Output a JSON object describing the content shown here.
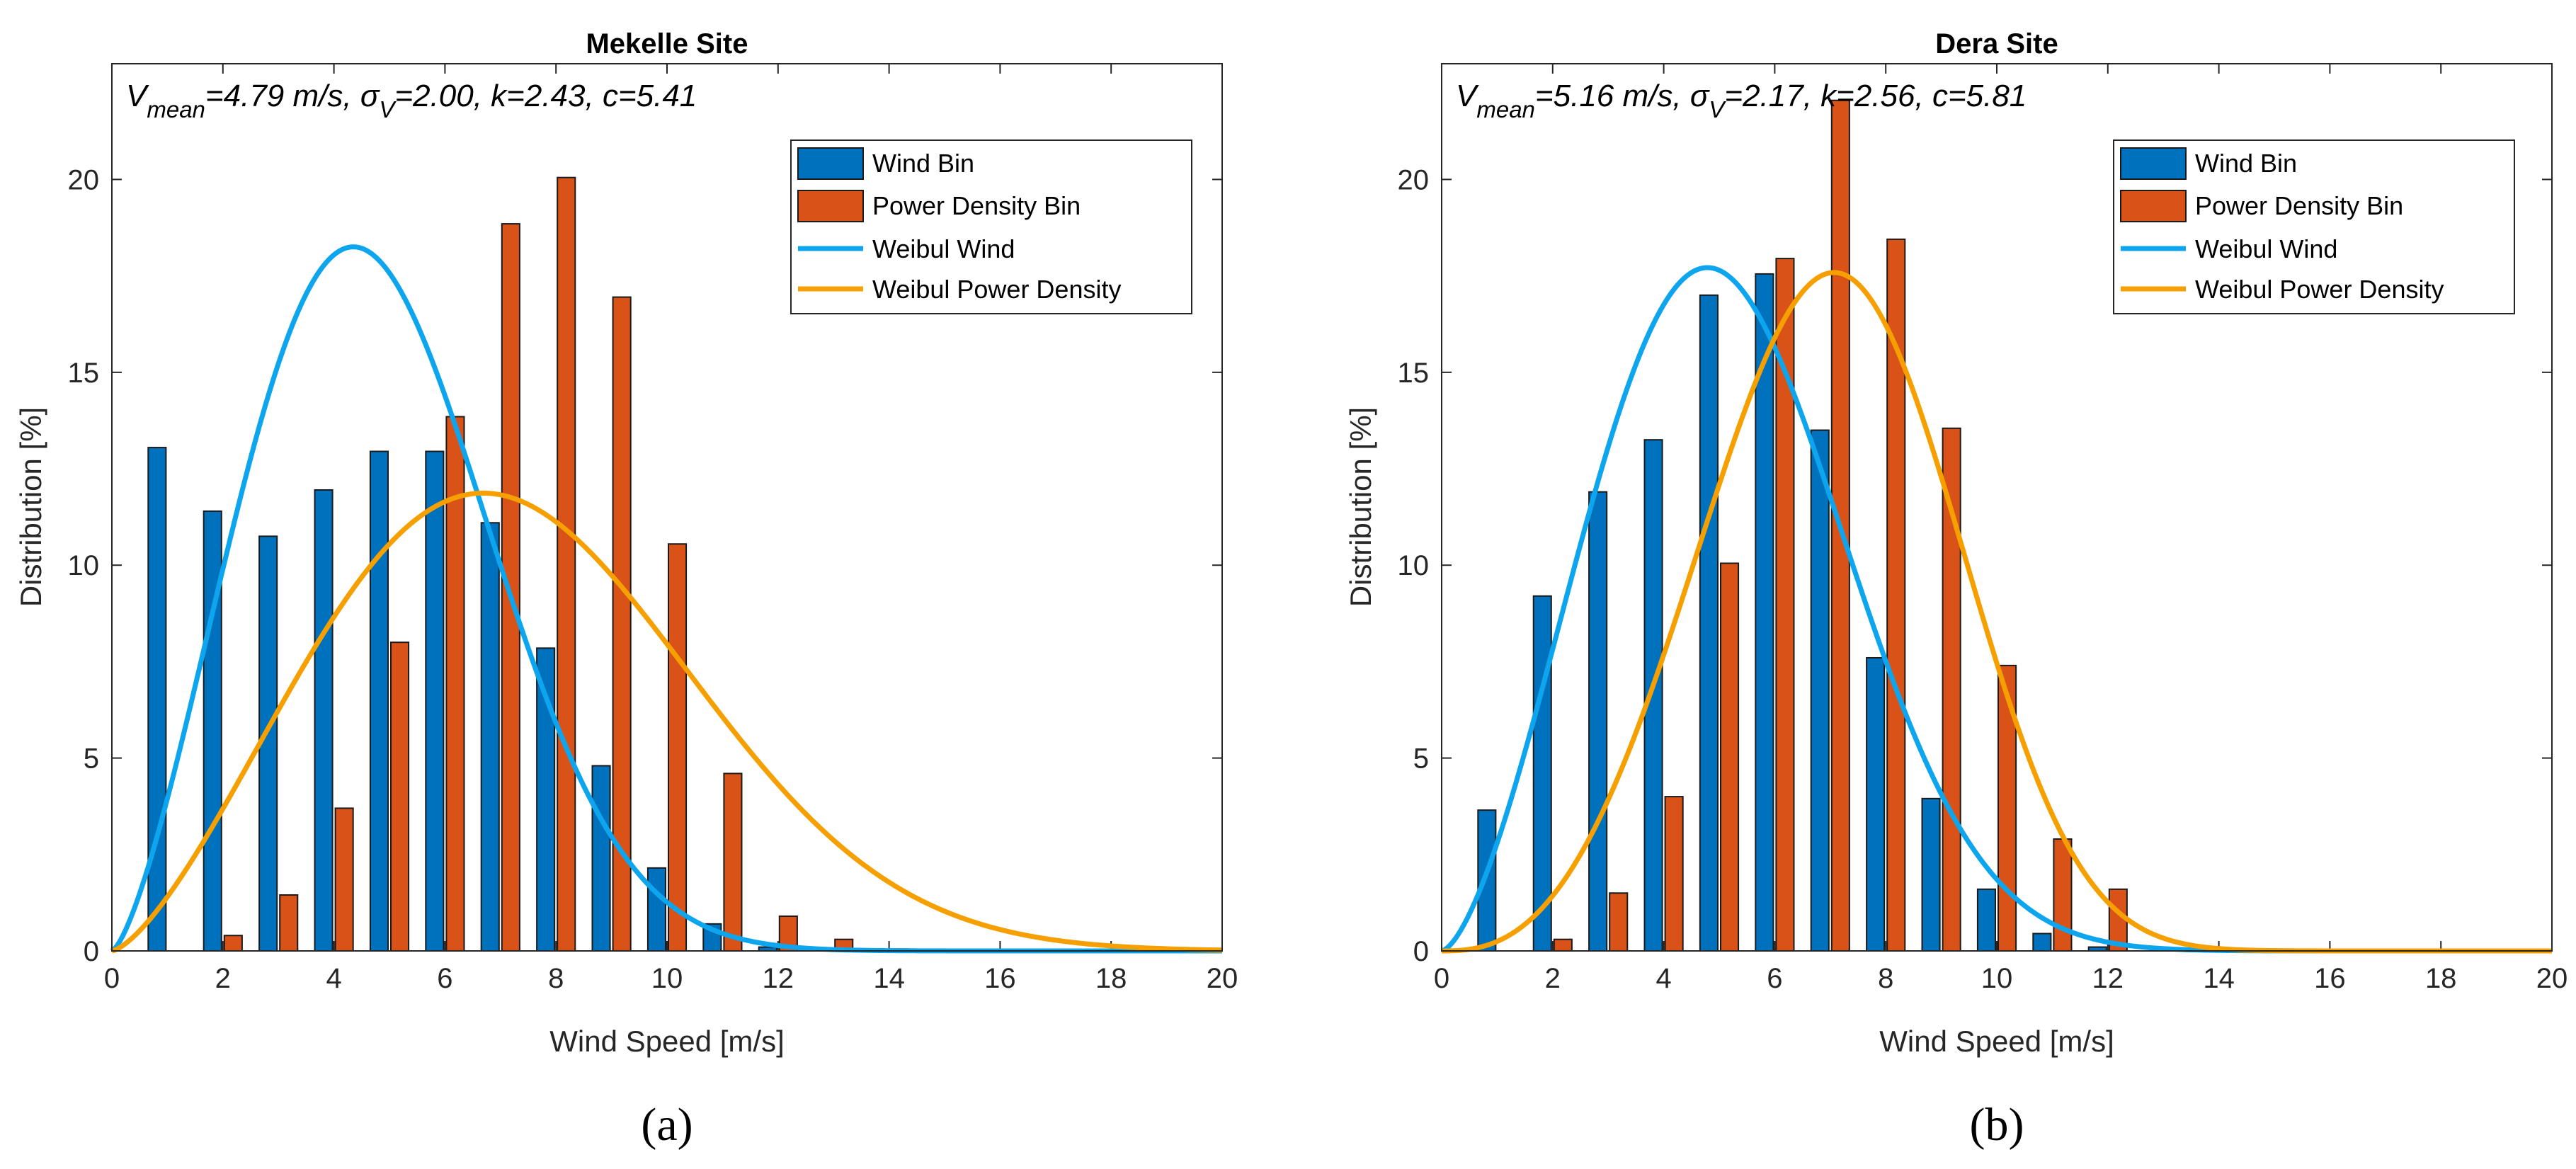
{
  "chart_data": [
    {
      "id": "a",
      "type": "bar",
      "title": "Mekelle Site",
      "subtitle_parts": {
        "v": "V",
        "v_sub": "mean",
        "v_val": "=4.79 m/s, ",
        "sigma": "σ",
        "sigma_sub": "V",
        "rest": "=2.00, k=2.43, c=5.41"
      },
      "xlabel": "Wind Speed [m/s]",
      "ylabel": "Distribution [%]",
      "xlim": [
        0,
        20
      ],
      "ylim": [
        0,
        23
      ],
      "xticks": [
        0,
        2,
        4,
        6,
        8,
        10,
        12,
        14,
        16,
        18,
        20
      ],
      "yticks": [
        0,
        5,
        10,
        15,
        20
      ],
      "caption": "(a)",
      "legend_position": "top-right",
      "categories": [
        1,
        2,
        3,
        4,
        5,
        6,
        7,
        8,
        9,
        10,
        11,
        12,
        13,
        14
      ],
      "series": [
        {
          "name": "Wind Bin",
          "kind": "bar",
          "color": "#0072bd",
          "values": [
            13.05,
            11.4,
            10.75,
            11.95,
            12.95,
            12.95,
            11.1,
            7.85,
            4.8,
            2.15,
            0.7,
            0.1,
            0.05,
            0.02
          ]
        },
        {
          "name": "Power Density Bin",
          "kind": "bar",
          "color": "#d95319",
          "values": [
            0.0,
            0.4,
            1.45,
            3.7,
            8.0,
            13.85,
            18.85,
            20.05,
            16.95,
            10.55,
            4.6,
            0.9,
            0.3,
            0.05
          ]
        },
        {
          "name": "Weibul Wind",
          "kind": "weibull",
          "color": "#0ea5ef",
          "k": 2.43,
          "c": 5.41
        },
        {
          "name": "Weibul Power Density",
          "kind": "weibull",
          "color": "#f59f00",
          "k": 2.43,
          "c": 8.32
        }
      ]
    },
    {
      "id": "b",
      "type": "bar",
      "title": "Dera Site",
      "subtitle_parts": {
        "v": "V",
        "v_sub": "mean",
        "v_val": "=5.16 m/s, ",
        "sigma": "σ",
        "sigma_sub": "V",
        "rest": "=2.17, k=2.56, c=5.81"
      },
      "xlabel": "Wind Speed [m/s]",
      "ylabel": "Distribution [%]",
      "xlim": [
        0,
        20
      ],
      "ylim": [
        0,
        23
      ],
      "xticks": [
        0,
        2,
        4,
        6,
        8,
        10,
        12,
        14,
        16,
        18,
        20
      ],
      "yticks": [
        0,
        5,
        10,
        15,
        20
      ],
      "caption": "(b)",
      "legend_position": "top-right",
      "categories": [
        1,
        2,
        3,
        4,
        5,
        6,
        7,
        8,
        9,
        10,
        11,
        12
      ],
      "series": [
        {
          "name": "Wind Bin",
          "kind": "bar",
          "color": "#0072bd",
          "values": [
            3.65,
            9.2,
            11.9,
            13.25,
            17.0,
            17.55,
            13.5,
            7.6,
            3.95,
            1.6,
            0.45,
            0.1
          ]
        },
        {
          "name": "Power Density Bin",
          "kind": "bar",
          "color": "#d95319",
          "values": [
            0.0,
            0.3,
            1.5,
            4.0,
            10.05,
            17.95,
            22.05,
            18.45,
            13.55,
            7.4,
            2.9,
            1.6
          ]
        },
        {
          "name": "Weibul Wind",
          "kind": "weibull",
          "color": "#0ea5ef",
          "k": 2.56,
          "c": 5.81
        },
        {
          "name": "Weibul Power Density",
          "kind": "weibull",
          "color": "#f59f00",
          "k": 3.55,
          "c": 7.76
        }
      ]
    }
  ]
}
